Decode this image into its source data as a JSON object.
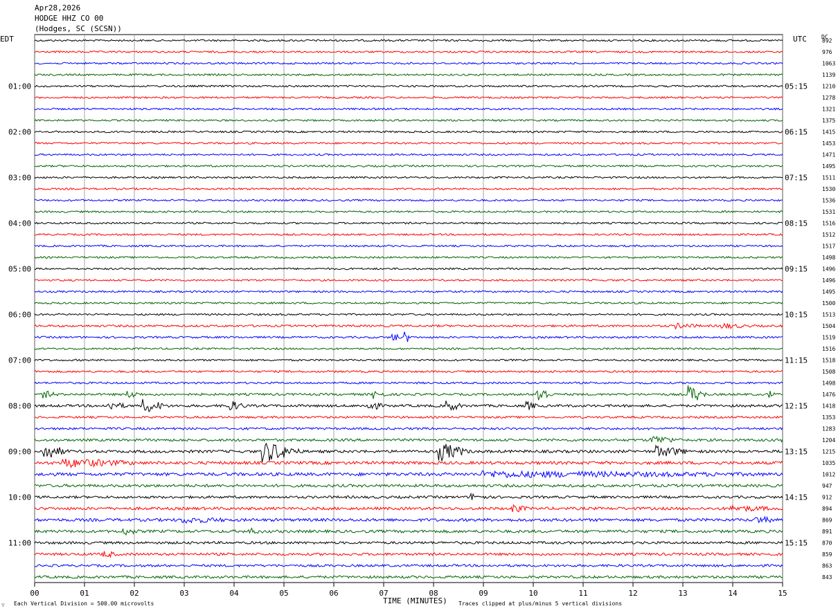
{
  "header": {
    "date": "Apr28,2026",
    "station": "HODGE HHZ CO 00",
    "location": "(Hodges, SC (SCSN))"
  },
  "left_tz": "EDT",
  "right_tz": "UTC",
  "dc_label": "DC",
  "xlabel": "TIME (MINUTES)",
  "footer_left": "Each Vertical Division =  500.00 microvolts",
  "footer_right": "Traces clipped at plus/minus 5 vertical divisions",
  "footer_mark": "∵",
  "colors": {
    "trace_cycle": [
      "#000000",
      "#ff0000",
      "#0000ff",
      "#006400"
    ],
    "grid": "#808080"
  },
  "chart_data": {
    "type": "line",
    "title": "",
    "xlim": [
      0,
      15
    ],
    "x_ticks": [
      "00",
      "01",
      "02",
      "03",
      "04",
      "05",
      "06",
      "07",
      "08",
      "09",
      "10",
      "11",
      "12",
      "13",
      "14",
      "15"
    ],
    "trace_count": 48,
    "left_hour_labels": [
      "01:00",
      "02:00",
      "03:00",
      "04:00",
      "05:00",
      "06:00",
      "07:00",
      "08:00",
      "09:00",
      "10:00",
      "11:00"
    ],
    "right_hour_labels": [
      "05:15",
      "06:15",
      "07:15",
      "08:15",
      "09:15",
      "10:15",
      "11:15",
      "12:15",
      "13:15",
      "14:15",
      "15:15"
    ],
    "dc_offsets": [
      892,
      976,
      1063,
      1139,
      1210,
      1278,
      1321,
      1375,
      1415,
      1453,
      1471,
      1495,
      1511,
      1530,
      1536,
      1531,
      1516,
      1512,
      1517,
      1498,
      1496,
      1496,
      1495,
      1500,
      1513,
      1504,
      1519,
      1516,
      1518,
      1508,
      1498,
      1476,
      1418,
      1353,
      1283,
      1204,
      1215,
      1035,
      1012,
      947,
      912,
      894,
      869,
      891,
      870,
      859,
      863,
      843
    ],
    "noise_level": [
      1.3,
      1.3,
      1.3,
      1.3,
      1.3,
      1.3,
      1.3,
      1.3,
      1.3,
      1.3,
      1.3,
      1.3,
      1.3,
      1.3,
      1.3,
      1.3,
      1.3,
      1.3,
      1.3,
      1.3,
      1.3,
      1.3,
      1.3,
      1.3,
      1.3,
      1.5,
      1.4,
      1.3,
      1.3,
      1.4,
      1.4,
      1.6,
      1.8,
      1.5,
      1.6,
      1.8,
      2.0,
      2.2,
      2.3,
      2.0,
      1.8,
      2.0,
      2.1,
      2.0,
      1.8,
      1.8,
      1.7,
      1.8
    ],
    "events": [
      {
        "trace": 25,
        "minute": 12.9,
        "amp": 3,
        "dur": 0.5
      },
      {
        "trace": 25,
        "minute": 13.8,
        "amp": 3,
        "dur": 0.6
      },
      {
        "trace": 26,
        "minute": 7.2,
        "amp": 6,
        "dur": 0.15
      },
      {
        "trace": 26,
        "minute": 7.45,
        "amp": 8,
        "dur": 0.1
      },
      {
        "trace": 31,
        "minute": 0.2,
        "amp": 4,
        "dur": 0.3
      },
      {
        "trace": 31,
        "minute": 1.9,
        "amp": 4,
        "dur": 0.3
      },
      {
        "trace": 31,
        "minute": 6.8,
        "amp": 5,
        "dur": 0.3
      },
      {
        "trace": 31,
        "minute": 10.1,
        "amp": 12,
        "dur": 0.3
      },
      {
        "trace": 31,
        "minute": 13.15,
        "amp": 12,
        "dur": 0.35
      },
      {
        "trace": 31,
        "minute": 14.75,
        "amp": 5,
        "dur": 0.1
      },
      {
        "trace": 32,
        "minute": 1.5,
        "amp": 5,
        "dur": 0.4
      },
      {
        "trace": 32,
        "minute": 2.2,
        "amp": 9,
        "dur": 0.5
      },
      {
        "trace": 32,
        "minute": 3.9,
        "amp": 6,
        "dur": 0.4
      },
      {
        "trace": 32,
        "minute": 6.7,
        "amp": 7,
        "dur": 0.3
      },
      {
        "trace": 32,
        "minute": 8.3,
        "amp": 7,
        "dur": 0.3
      },
      {
        "trace": 32,
        "minute": 9.9,
        "amp": 5,
        "dur": 0.2
      },
      {
        "trace": 35,
        "minute": 12.4,
        "amp": 5,
        "dur": 0.6
      },
      {
        "trace": 35,
        "minute": 15.0,
        "amp": 3,
        "dur": 0.2
      },
      {
        "trace": 36,
        "minute": 0.2,
        "amp": 10,
        "dur": 0.5
      },
      {
        "trace": 36,
        "minute": 4.6,
        "amp": 14,
        "dur": 0.8
      },
      {
        "trace": 36,
        "minute": 8.15,
        "amp": 12,
        "dur": 0.6
      },
      {
        "trace": 36,
        "minute": 12.5,
        "amp": 7,
        "dur": 0.7
      },
      {
        "trace": 37,
        "minute": 0.6,
        "amp": 5,
        "dur": 1.6
      },
      {
        "trace": 38,
        "minute": 9.0,
        "amp": 3,
        "dur": 6.0
      },
      {
        "trace": 40,
        "minute": 8.8,
        "amp": 4,
        "dur": 0.3
      },
      {
        "trace": 41,
        "minute": 9.6,
        "amp": 5,
        "dur": 0.3
      },
      {
        "trace": 41,
        "minute": 14.0,
        "amp": 3,
        "dur": 1.0
      },
      {
        "trace": 42,
        "minute": 3.0,
        "amp": 3,
        "dur": 1.0
      },
      {
        "trace": 42,
        "minute": 14.5,
        "amp": 4,
        "dur": 0.4
      },
      {
        "trace": 43,
        "minute": 1.8,
        "amp": 4,
        "dur": 0.3
      },
      {
        "trace": 43,
        "minute": 4.3,
        "amp": 3,
        "dur": 0.3
      },
      {
        "trace": 45,
        "minute": 1.4,
        "amp": 4,
        "dur": 0.3
      }
    ]
  }
}
